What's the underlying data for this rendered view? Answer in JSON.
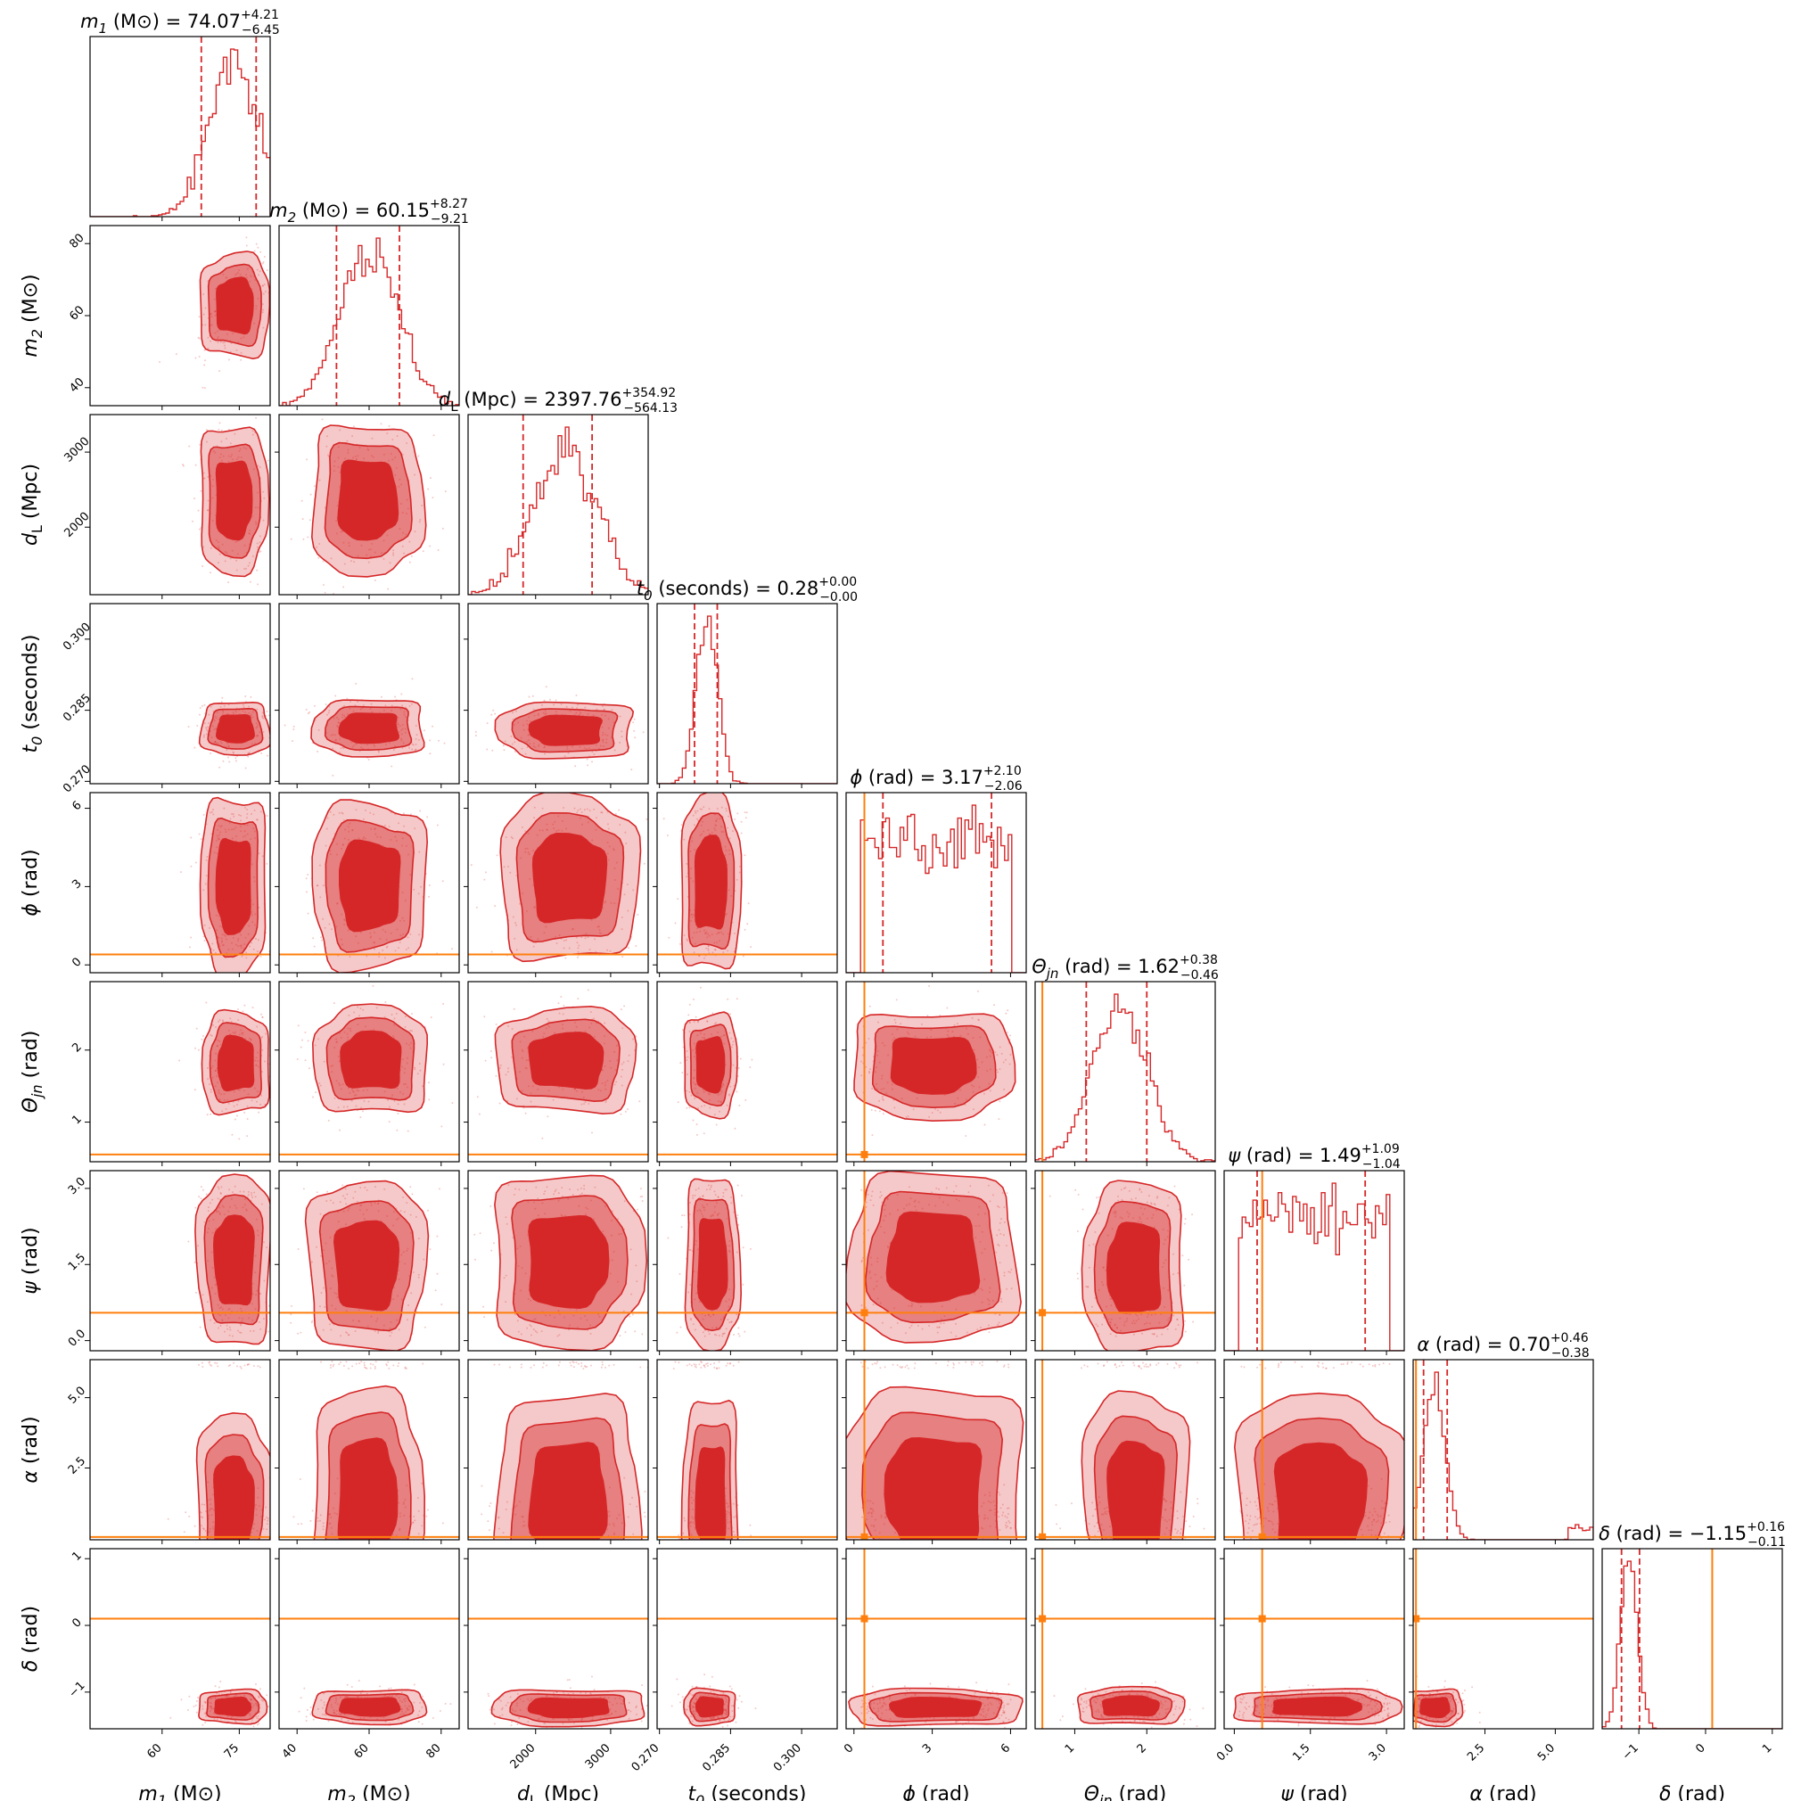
{
  "chart_data": {
    "type": "corner",
    "colors": {
      "posterior": "#d62728",
      "injection": "#ff7f0e"
    },
    "parameters": [
      {
        "label_main": "m",
        "label_sub": "1",
        "unit": "(M⊙)",
        "median": "74.07",
        "plus": "+4.21",
        "minus": "−6.45",
        "range": [
          46,
          81
        ],
        "ticks": [
          60,
          75
        ],
        "tick_labels": [
          "60",
          "75"
        ],
        "quantile_lines": [
          67.62,
          78.28
        ],
        "injection": null
      },
      {
        "label_main": "m",
        "label_sub": "2",
        "unit": "(M⊙)",
        "median": "60.15",
        "plus": "+8.27",
        "minus": "−9.21",
        "range": [
          35,
          85
        ],
        "ticks": [
          40,
          60,
          80
        ],
        "tick_labels": [
          "40",
          "60",
          "80"
        ],
        "quantile_lines": [
          50.94,
          68.42
        ],
        "injection": null
      },
      {
        "label_main": "d",
        "label_sub": "L",
        "unit": "(Mpc)",
        "median": "2397.76",
        "plus": "+354.92",
        "minus": "−564.13",
        "range": [
          1100,
          3500
        ],
        "ticks": [
          2000,
          3000
        ],
        "tick_labels": [
          "2000",
          "3000"
        ],
        "quantile_lines": [
          1833.63,
          2752.68
        ],
        "injection": null
      },
      {
        "label_main": "t",
        "label_sub": "0",
        "unit": "(seconds)",
        "median": "0.28",
        "plus": "+0.00",
        "minus": "−0.00",
        "range": [
          0.2695,
          0.3075
        ],
        "ticks": [
          0.27,
          0.285,
          0.3
        ],
        "tick_labels": [
          "0.270",
          "0.285",
          "0.300"
        ],
        "quantile_lines": [
          0.2774,
          0.2822
        ],
        "injection": null
      },
      {
        "label_main": "ϕ",
        "label_sub": "",
        "unit": "(rad)",
        "median": "3.17",
        "plus": "+2.10",
        "minus": "−2.06",
        "range": [
          -0.3,
          6.6
        ],
        "ticks": [
          0,
          3,
          6
        ],
        "tick_labels": [
          "0",
          "3",
          "6"
        ],
        "quantile_lines": [
          1.11,
          5.27
        ],
        "injection": 0.4
      },
      {
        "label_main": "Θ",
        "label_sub": "jn",
        "unit": "(rad)",
        "median": "1.62",
        "plus": "+0.38",
        "minus": "−0.46",
        "range": [
          0.45,
          2.95
        ],
        "ticks": [
          1,
          2
        ],
        "tick_labels": [
          "1",
          "2"
        ],
        "quantile_lines": [
          1.16,
          2.0
        ],
        "injection": 0.55
      },
      {
        "label_main": "ψ",
        "label_sub": "",
        "unit": "(rad)",
        "median": "1.49",
        "plus": "+1.09",
        "minus": "−1.04",
        "range": [
          -0.2,
          3.35
        ],
        "ticks": [
          0.0,
          1.5,
          3.0
        ],
        "tick_labels": [
          "0.0",
          "1.5",
          "3.0"
        ],
        "quantile_lines": [
          0.45,
          2.58
        ],
        "injection": 0.55
      },
      {
        "label_main": "α",
        "label_sub": "",
        "unit": "(rad)",
        "median": "0.70",
        "plus": "+0.46",
        "minus": "−0.38",
        "range": [
          -0.05,
          6.35
        ],
        "ticks": [
          2.5,
          5.0
        ],
        "tick_labels": [
          "2.5",
          "5.0"
        ],
        "quantile_lines": [
          0.32,
          1.16
        ],
        "injection": 0.05
      },
      {
        "label_main": "δ",
        "label_sub": "",
        "unit": "(rad)",
        "median": "−1.15",
        "plus": "+0.16",
        "minus": "−0.11",
        "range": [
          -1.55,
          1.15
        ],
        "ticks": [
          -1,
          0,
          1
        ],
        "tick_labels": [
          "−1",
          "0",
          "1"
        ],
        "quantile_lines": [
          -1.26,
          -0.99
        ],
        "injection": 0.1
      }
    ]
  }
}
